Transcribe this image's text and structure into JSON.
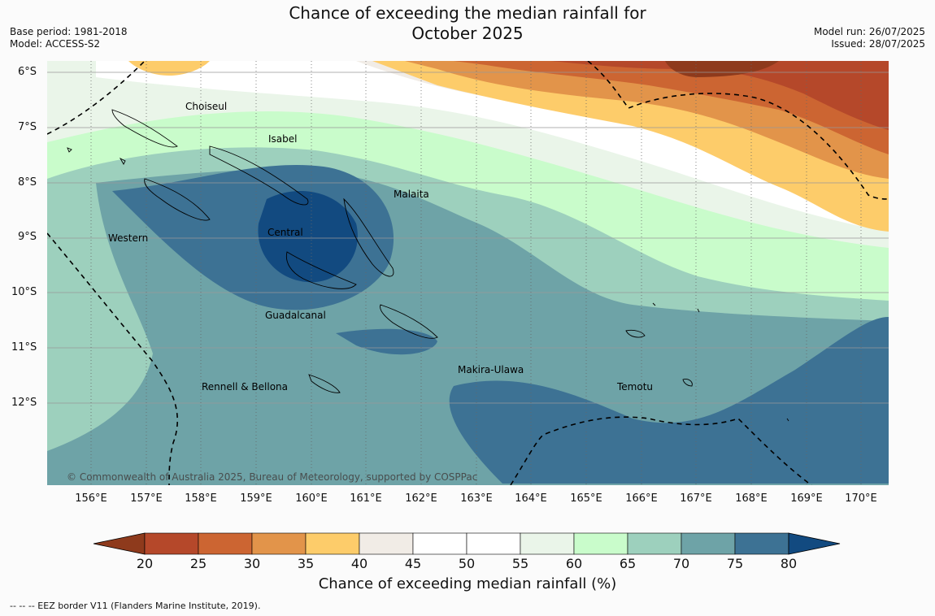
{
  "title_line1": "Chance of exceeding the median rainfall for",
  "title_line2": "October 2025",
  "meta_left": [
    "Base period: 1981-2018",
    "Model: ACCESS-S2"
  ],
  "meta_right": [
    "Model run: 26/07/2025",
    "Issued: 28/07/2025"
  ],
  "lat_labels": [
    "6°S",
    "7°S",
    "8°S",
    "9°S",
    "10°S",
    "11°S",
    "12°S"
  ],
  "lon_labels": [
    "156°E",
    "157°E",
    "158°E",
    "159°E",
    "160°E",
    "161°E",
    "162°E",
    "163°E",
    "164°E",
    "165°E",
    "166°E",
    "167°E",
    "168°E",
    "169°E",
    "170°E"
  ],
  "regions": [
    "Choiseul",
    "Isabel",
    "Malaita",
    "Western",
    "Central",
    "Guadalcanal",
    "Makira-Ulawa",
    "Rennell & Bellona",
    "Temotu"
  ],
  "copyright": "© Commonwealth of Australia 2025, Bureau of Meteorology, supported by COSPPac",
  "colorbar": {
    "ticks": [
      "20",
      "25",
      "30",
      "35",
      "40",
      "45",
      "50",
      "55",
      "60",
      "65",
      "70",
      "75",
      "80"
    ],
    "colors": [
      "#8e3a1c",
      "#b5482a",
      "#cc6532",
      "#e2944a",
      "#fdcc6a",
      "#f1ece6",
      "#ffffff",
      "#ffffff",
      "#eaf5e9",
      "#c9fccb",
      "#9dd0bd",
      "#6ea3a7",
      "#3d7294",
      "#124a80"
    ],
    "title": "Chance of exceeding median rainfall (%)"
  },
  "footnote": "--  --  -- EEZ border V11 (Flanders Marine Institute, 2019)."
}
